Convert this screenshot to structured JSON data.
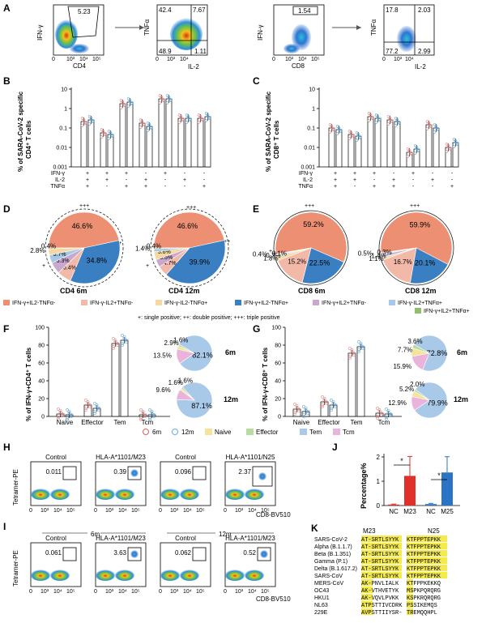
{
  "panels": {
    "A": "A",
    "B": "B",
    "C": "C",
    "D": "D",
    "E": "E",
    "F": "F",
    "G": "G",
    "H": "H",
    "I": "I",
    "J": "J",
    "K": "K"
  },
  "panelA": {
    "cd4": {
      "x_label": "CD4",
      "y_label": "IFN-γ",
      "gate_value": "5.23"
    },
    "cd4_sub": {
      "x_label": "IL-2",
      "y_label": "TNFα",
      "q_tl": "42.4",
      "q_tr": "7.67",
      "q_bl": "48.9",
      "q_br": "1.11"
    },
    "cd8": {
      "x_label": "CD8",
      "y_label": "IFN-γ",
      "gate_value": "1.54"
    },
    "cd8_sub": {
      "x_label": "IL-2",
      "y_label": "TNFα",
      "q_tl": "17.8",
      "q_tr": "2.03",
      "q_bl": "77.2",
      "q_br": "2.99"
    },
    "ticks": [
      "0",
      "10³",
      "10⁴",
      "10⁵"
    ]
  },
  "panelB": {
    "y_title_1": "% of SARA-CoV-2 specific",
    "y_title_2": "CD4⁺ T cells",
    "y_ticks": [
      "10",
      "1",
      "0.1",
      "0.01",
      "0.001"
    ],
    "rows": [
      "IFN-γ",
      "IL-2",
      "TNFα"
    ],
    "signs": [
      [
        "+",
        "+",
        "+",
        "-",
        "+",
        "-",
        "-"
      ],
      [
        "+",
        "+",
        "-",
        "+",
        "-",
        "+",
        "-"
      ],
      [
        "+",
        "-",
        "+",
        "+",
        "-",
        "-",
        "+"
      ]
    ]
  },
  "panelC": {
    "y_title_1": "% of SARA-CoV-2 specific",
    "y_title_2": "CD8⁺ T cells",
    "y_ticks": [
      "10",
      "1",
      "0.1",
      "0.01",
      "0.001"
    ],
    "rows": [
      "IFN-γ",
      "IL-2",
      "TNFα"
    ]
  },
  "panelD": {
    "pie1": {
      "title": "CD4 6m",
      "slices": [
        {
          "label": "46.6%",
          "value": 46.6,
          "color": "#ec8f72"
        },
        {
          "label": "34.8%",
          "value": 34.8,
          "color": "#3a7fc2"
        },
        {
          "label": "6.4%",
          "value": 6.4,
          "color": "#f3b9a8"
        },
        {
          "label": "5.3%",
          "value": 5.3,
          "color": "#c9a8cf"
        },
        {
          "label": "3.7%",
          "value": 3.7,
          "color": "#a6c8e6"
        },
        {
          "label": "2.8%",
          "value": 2.8,
          "color": "#f6d9a1"
        },
        {
          "label": "0.4%",
          "value": 0.4,
          "color": "#8fbf6c"
        }
      ]
    },
    "pie2": {
      "title": "CD4 12m",
      "slices": [
        {
          "label": "46.6%",
          "value": 46.6,
          "color": "#ec8f72"
        },
        {
          "label": "39.9%",
          "value": 39.9,
          "color": "#3a7fc2"
        },
        {
          "label": "4.7%",
          "value": 4.7,
          "color": "#f3b9a8"
        },
        {
          "label": "3.5%",
          "value": 3.5,
          "color": "#c9a8cf"
        },
        {
          "label": "3.6%",
          "value": 3.6,
          "color": "#f6d9a1"
        },
        {
          "label": "1.4%",
          "value": 1.4,
          "color": "#a6c8e6"
        },
        {
          "label": "0.4%",
          "value": 0.4,
          "color": "#8fbf6c"
        }
      ]
    },
    "marks": {
      "triple": "+++",
      "double": "++",
      "single": "+"
    }
  },
  "panelE": {
    "pie1": {
      "title": "CD8 6m",
      "slices": [
        {
          "label": "59.2%",
          "value": 59.2,
          "color": "#ec8f72"
        },
        {
          "label": "22.5%",
          "value": 22.5,
          "color": "#3a7fc2"
        },
        {
          "label": "15.2%",
          "value": 15.2,
          "color": "#f3b9a8"
        },
        {
          "label": "1.8%",
          "value": 1.8,
          "color": "#f6d9a1"
        },
        {
          "label": "0.7%",
          "value": 0.7,
          "color": "#a6c8e6"
        },
        {
          "label": "0.4%",
          "value": 0.4,
          "color": "#c9a8cf"
        },
        {
          "label": "0.1%",
          "value": 0.1,
          "color": "#8fbf6c"
        }
      ]
    },
    "pie2": {
      "title": "CD8 12m",
      "slices": [
        {
          "label": "59.9%",
          "value": 59.9,
          "color": "#ec8f72"
        },
        {
          "label": "20.1%",
          "value": 20.1,
          "color": "#3a7fc2"
        },
        {
          "label": "16.7%",
          "value": 16.7,
          "color": "#f3b9a8"
        },
        {
          "label": "1.1%",
          "value": 1.1,
          "color": "#f6d9a1"
        },
        {
          "label": "1.4%",
          "value": 1.4,
          "color": "#c9a8cf"
        },
        {
          "label": "0.5%",
          "value": 0.5,
          "color": "#a6c8e6"
        },
        {
          "label": "0.3%",
          "value": 0.3,
          "color": "#8fbf6c"
        }
      ]
    }
  },
  "legendDE": {
    "items": [
      {
        "label": "IFN-γ+IL2-TNFα-",
        "color": "#ec8f72"
      },
      {
        "label": "IFN-γ-IL2+TNFα-",
        "color": "#f3b9a8"
      },
      {
        "label": "IFN-γ-IL2-TNFα+",
        "color": "#f6d9a1"
      },
      {
        "label": "IFN-γ+IL2-TNFα+",
        "color": "#3a7fc2"
      },
      {
        "label": "IFN-γ+IL2+TNFα-",
        "color": "#c9a8cf"
      },
      {
        "label": "IFN-γ-IL2+TNFα+",
        "color": "#a6c8e6"
      },
      {
        "label": "IFN-γ+IL2+TNFα+",
        "color": "#8fbf6c"
      }
    ],
    "note": "+: single positive; ++: double positive; +++: triple positive"
  },
  "panelF": {
    "y_title": "% of IFN-γ+CD4⁺ T cells",
    "y_ticks": [
      "100",
      "80",
      "60",
      "40",
      "20",
      "0"
    ],
    "categories": [
      "Naive",
      "Effector",
      "Tem",
      "Tcm"
    ],
    "pie6": {
      "label": "6m",
      "slices": [
        {
          "label": "82.1%",
          "value": 82.1,
          "color": "#a9c9e8"
        },
        {
          "label": "13.5%",
          "value": 13.5,
          "color": "#e9b3dc"
        },
        {
          "label": "2.9%",
          "value": 2.9,
          "color": "#f4e39a"
        },
        {
          "label": "1.6%",
          "value": 1.6,
          "color": "#b8dba0"
        }
      ]
    },
    "pie12": {
      "label": "12m",
      "slices": [
        {
          "label": "87.1%",
          "value": 87.1,
          "color": "#a9c9e8"
        },
        {
          "label": "9.6%",
          "value": 9.6,
          "color": "#e9b3dc"
        },
        {
          "label": "1.6%",
          "value": 1.6,
          "color": "#f4e39a"
        },
        {
          "label": "1.6%",
          "value": 1.6,
          "color": "#b8dba0"
        }
      ]
    }
  },
  "panelG": {
    "y_title": "% of IFN-γ+CD8⁺ T cells",
    "y_ticks": [
      "100",
      "80",
      "60",
      "40",
      "20",
      "0"
    ],
    "categories": [
      "Naive",
      "Effector",
      "Tem",
      "Tcm"
    ],
    "pie6": {
      "label": "6m",
      "slices": [
        {
          "label": "72.8%",
          "value": 72.8,
          "color": "#a9c9e8"
        },
        {
          "label": "15.9%",
          "value": 15.9,
          "color": "#e9b3dc"
        },
        {
          "label": "7.7%",
          "value": 7.7,
          "color": "#f4e39a"
        },
        {
          "label": "3.6%",
          "value": 3.6,
          "color": "#b8dba0"
        }
      ]
    },
    "pie12": {
      "label": "12m",
      "slices": [
        {
          "label": "79.9%",
          "value": 79.9,
          "color": "#a9c9e8"
        },
        {
          "label": "12.9%",
          "value": 12.9,
          "color": "#e9b3dc"
        },
        {
          "label": "5.2%",
          "value": 5.2,
          "color": "#f4e39a"
        },
        {
          "label": "2.0%",
          "value": 2.0,
          "color": "#b8dba0"
        }
      ]
    }
  },
  "legendFG": {
    "items": [
      {
        "label": "6m",
        "color": "#e06060",
        "kind": "circle"
      },
      {
        "label": "12m",
        "color": "#6aa9d8",
        "kind": "circle"
      },
      {
        "label": "Naive",
        "color": "#f4e39a",
        "kind": "box"
      },
      {
        "label": "Effector",
        "color": "#b8dba0",
        "kind": "box"
      },
      {
        "label": "Tem",
        "color": "#a9c9e8",
        "kind": "box"
      },
      {
        "label": "Tcm",
        "color": "#e9b3dc",
        "kind": "box"
      }
    ]
  },
  "panelH": {
    "y_label": "Tetramer-PE",
    "x_label": "CD8-BV510",
    "plots": [
      {
        "title": "Control",
        "value": "0.011"
      },
      {
        "title": "HLA-A*1101/M23",
        "value": "0.39"
      },
      {
        "title": "Control",
        "value": "0.096"
      },
      {
        "title": "HLA-A*1101/N25",
        "value": "2.37"
      }
    ],
    "ticks": [
      "0",
      "10³",
      "10⁴",
      "10⁵"
    ]
  },
  "panelI": {
    "group_6m": "6m",
    "group_12m": "12m",
    "plots": [
      {
        "title": "Control",
        "value": "0.061"
      },
      {
        "title": "HLA-A*1101/M23",
        "value": "3.63"
      },
      {
        "title": "Control",
        "value": "0.062"
      },
      {
        "title": "HLA-A*1101/M23",
        "value": "0.52"
      }
    ]
  },
  "chart_data": [
    {
      "type": "bar",
      "panel": "J",
      "title": "",
      "ylabel": "Percentage%",
      "ylim": [
        0,
        2
      ],
      "yticks": [
        "0",
        "1",
        "2"
      ],
      "categories": [
        "NC",
        "M23",
        "NC",
        "M25"
      ],
      "values": [
        0.04,
        1.22,
        0.06,
        1.36
      ],
      "errors": [
        0.02,
        0.8,
        0.03,
        0.65
      ],
      "colors": [
        "#e0302a",
        "#e0302a",
        "#2b73c4",
        "#2b73c4"
      ],
      "significance": [
        "*",
        "*"
      ]
    }
  ],
  "panelK": {
    "head_m23": "M23",
    "head_n25": "N25",
    "rows": [
      {
        "name": "SARS-CoV-2",
        "m23": "AT-SRTLSYYK",
        "n25": "KTFPPTEPKK",
        "hl": true
      },
      {
        "name": "Alpha (B.1.1.7)",
        "m23": "AT-SRTLSYYK",
        "n25": "KTFPPTEPKK",
        "hl": true
      },
      {
        "name": "Beta (B.1.351)",
        "m23": "AT-SRTLSYYK",
        "n25": "KTFPPTEPKK",
        "hl": true
      },
      {
        "name": "Gamma (P.1)",
        "m23": "AT-SRTLSYYK",
        "n25": "KTFPPTEPKK",
        "hl": true
      },
      {
        "name": "Delta (B.1.617.2)",
        "m23": "AT-SRTLSYYK",
        "n25": "KTFPPTEPKK",
        "hl": true
      },
      {
        "name": "SARS-CoV",
        "m23": "AT-SRTLSYYK",
        "n25": "KTFPPTEPKK",
        "hl": true
      },
      {
        "name": "MERS-CoV",
        "m23": "AK-PNVLIALK",
        "n25": "KTFPPKEKKQ",
        "hl": false
      },
      {
        "name": "OC43",
        "m23": "AK-VTHVETYK",
        "n25": "MSPKPQRQRG",
        "hl": false
      },
      {
        "name": "HKU1",
        "m23": "AK-VQVLPVKK",
        "n25": "KSPKRQRQRG",
        "hl": false
      },
      {
        "name": "NL63",
        "m23": "ATPSTTIVCDRK",
        "n25": "PSSIKEMQS",
        "hl": false
      },
      {
        "name": "229E",
        "m23": "AVPSTTIIYSR-",
        "n25": "TREMQQHPL",
        "hl": false
      }
    ]
  }
}
